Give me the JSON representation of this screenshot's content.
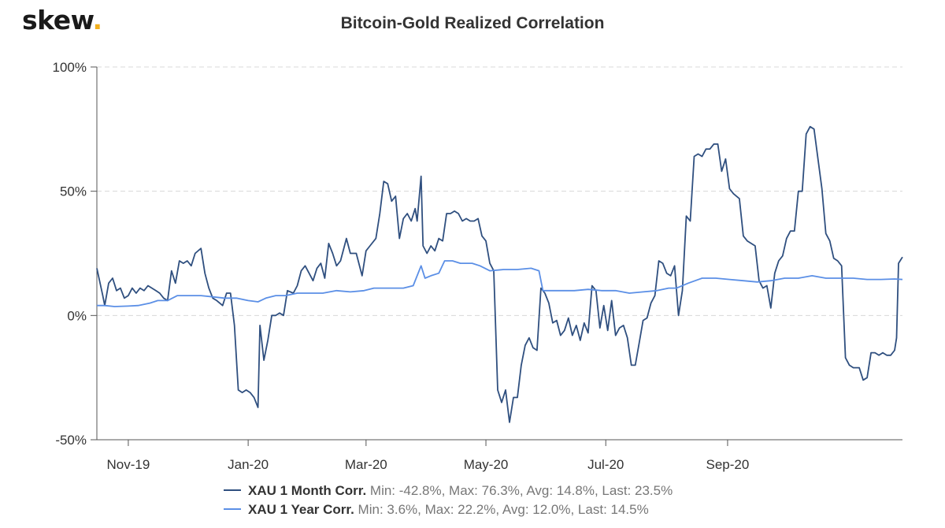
{
  "logo": {
    "text": "skew",
    "dot": "."
  },
  "chart_data": {
    "type": "line",
    "title": "Bitcoin-Gold Realized Correlation",
    "xlabel": "",
    "ylabel": "",
    "ylim": [
      -50,
      100
    ],
    "xlim": [
      "2019-10-16",
      "2020-11-26"
    ],
    "y_ticks": [
      {
        "value": 100,
        "label": "100%"
      },
      {
        "value": 50,
        "label": "50%"
      },
      {
        "value": 0,
        "label": "0%"
      },
      {
        "value": -50,
        "label": "-50%"
      }
    ],
    "x_ticks": [
      {
        "date": "2019-11-01",
        "label": "Nov-19"
      },
      {
        "date": "2020-01-01",
        "label": "Jan-20"
      },
      {
        "date": "2020-03-01",
        "label": "Mar-20"
      },
      {
        "date": "2020-05-01",
        "label": "May-20"
      },
      {
        "date": "2020-07-01",
        "label": "Jul-20"
      },
      {
        "date": "2020-09-01",
        "label": "Sep-20"
      }
    ],
    "grid": "horizontal dashed",
    "legend": "bottom-center",
    "series": [
      {
        "name": "XAU 1 Month Corr.",
        "stats": "Min: -42.8%, Max: 76.3%, Avg: 14.8%, Last: 23.5%",
        "color": "#2f4f7f",
        "points": [
          [
            "2019-10-16",
            19
          ],
          [
            "2019-10-19",
            8
          ],
          [
            "2019-10-20",
            4
          ],
          [
            "2019-10-22",
            13
          ],
          [
            "2019-10-24",
            15
          ],
          [
            "2019-10-26",
            10
          ],
          [
            "2019-10-28",
            11
          ],
          [
            "2019-10-30",
            7
          ],
          [
            "2019-11-01",
            8
          ],
          [
            "2019-11-03",
            11
          ],
          [
            "2019-11-05",
            9
          ],
          [
            "2019-11-07",
            11
          ],
          [
            "2019-11-09",
            10
          ],
          [
            "2019-11-11",
            12
          ],
          [
            "2019-11-13",
            11
          ],
          [
            "2019-11-15",
            10
          ],
          [
            "2019-11-17",
            9
          ],
          [
            "2019-11-19",
            7
          ],
          [
            "2019-11-21",
            6
          ],
          [
            "2019-11-23",
            18
          ],
          [
            "2019-11-25",
            13
          ],
          [
            "2019-11-27",
            22
          ],
          [
            "2019-11-29",
            21
          ],
          [
            "2019-12-01",
            22
          ],
          [
            "2019-12-03",
            20
          ],
          [
            "2019-12-05",
            25
          ],
          [
            "2019-12-08",
            27
          ],
          [
            "2019-12-10",
            17
          ],
          [
            "2019-12-12",
            11
          ],
          [
            "2019-12-14",
            7
          ],
          [
            "2019-12-16",
            6
          ],
          [
            "2019-12-19",
            4
          ],
          [
            "2019-12-21",
            9
          ],
          [
            "2019-12-23",
            9
          ],
          [
            "2019-12-25",
            -4
          ],
          [
            "2019-12-27",
            -30
          ],
          [
            "2019-12-29",
            -31
          ],
          [
            "2019-12-31",
            -30
          ],
          [
            "2020-01-02",
            -31
          ],
          [
            "2020-01-04",
            -33
          ],
          [
            "2020-01-06",
            -37
          ],
          [
            "2020-01-07",
            -4
          ],
          [
            "2020-01-09",
            -18
          ],
          [
            "2020-01-11",
            -10
          ],
          [
            "2020-01-13",
            0
          ],
          [
            "2020-01-15",
            0
          ],
          [
            "2020-01-17",
            1
          ],
          [
            "2020-01-19",
            0
          ],
          [
            "2020-01-21",
            10
          ],
          [
            "2020-01-24",
            9
          ],
          [
            "2020-01-26",
            12
          ],
          [
            "2020-01-28",
            18
          ],
          [
            "2020-01-30",
            20
          ],
          [
            "2020-02-01",
            17
          ],
          [
            "2020-02-03",
            14
          ],
          [
            "2020-02-05",
            19
          ],
          [
            "2020-02-07",
            21
          ],
          [
            "2020-02-09",
            15
          ],
          [
            "2020-02-11",
            29
          ],
          [
            "2020-02-13",
            25
          ],
          [
            "2020-02-15",
            20
          ],
          [
            "2020-02-17",
            22
          ],
          [
            "2020-02-20",
            31
          ],
          [
            "2020-02-22",
            25
          ],
          [
            "2020-02-25",
            25
          ],
          [
            "2020-02-28",
            16
          ],
          [
            "2020-03-01",
            26
          ],
          [
            "2020-03-03",
            28
          ],
          [
            "2020-03-06",
            31
          ],
          [
            "2020-03-08",
            41
          ],
          [
            "2020-03-10",
            54
          ],
          [
            "2020-03-12",
            53
          ],
          [
            "2020-03-14",
            46
          ],
          [
            "2020-03-16",
            48
          ],
          [
            "2020-03-18",
            31
          ],
          [
            "2020-03-20",
            39
          ],
          [
            "2020-03-22",
            41
          ],
          [
            "2020-03-24",
            38
          ],
          [
            "2020-03-26",
            43
          ],
          [
            "2020-03-27",
            38
          ],
          [
            "2020-03-29",
            56
          ],
          [
            "2020-03-30",
            28
          ],
          [
            "2020-04-01",
            25
          ],
          [
            "2020-04-03",
            28
          ],
          [
            "2020-04-05",
            26
          ],
          [
            "2020-04-07",
            31
          ],
          [
            "2020-04-09",
            30
          ],
          [
            "2020-04-11",
            41
          ],
          [
            "2020-04-13",
            41
          ],
          [
            "2020-04-15",
            42
          ],
          [
            "2020-04-17",
            41
          ],
          [
            "2020-04-19",
            38
          ],
          [
            "2020-04-21",
            39
          ],
          [
            "2020-04-23",
            38
          ],
          [
            "2020-04-25",
            38
          ],
          [
            "2020-04-27",
            39
          ],
          [
            "2020-04-29",
            32
          ],
          [
            "2020-05-01",
            30
          ],
          [
            "2020-05-03",
            21
          ],
          [
            "2020-05-05",
            18
          ],
          [
            "2020-05-07",
            -30
          ],
          [
            "2020-05-09",
            -35
          ],
          [
            "2020-05-11",
            -30
          ],
          [
            "2020-05-13",
            -43
          ],
          [
            "2020-05-15",
            -33
          ],
          [
            "2020-05-17",
            -33
          ],
          [
            "2020-05-19",
            -20
          ],
          [
            "2020-05-21",
            -12
          ],
          [
            "2020-05-23",
            -9
          ],
          [
            "2020-05-25",
            -13
          ],
          [
            "2020-05-27",
            -14
          ],
          [
            "2020-05-29",
            11
          ],
          [
            "2020-05-31",
            9
          ],
          [
            "2020-06-02",
            5
          ],
          [
            "2020-06-04",
            -3
          ],
          [
            "2020-06-06",
            -2
          ],
          [
            "2020-06-08",
            -8
          ],
          [
            "2020-06-10",
            -6
          ],
          [
            "2020-06-12",
            -1
          ],
          [
            "2020-06-14",
            -8
          ],
          [
            "2020-06-16",
            -4
          ],
          [
            "2020-06-18",
            -10
          ],
          [
            "2020-06-20",
            -3
          ],
          [
            "2020-06-22",
            -7
          ],
          [
            "2020-06-24",
            12
          ],
          [
            "2020-06-26",
            10
          ],
          [
            "2020-06-28",
            -5
          ],
          [
            "2020-06-30",
            4
          ],
          [
            "2020-07-02",
            -6
          ],
          [
            "2020-07-04",
            6
          ],
          [
            "2020-07-06",
            -8
          ],
          [
            "2020-07-08",
            -5
          ],
          [
            "2020-07-10",
            -4
          ],
          [
            "2020-07-12",
            -9
          ],
          [
            "2020-07-14",
            -20
          ],
          [
            "2020-07-16",
            -20
          ],
          [
            "2020-07-18",
            -11
          ],
          [
            "2020-07-20",
            -2
          ],
          [
            "2020-07-22",
            -1
          ],
          [
            "2020-07-24",
            5
          ],
          [
            "2020-07-26",
            8
          ],
          [
            "2020-07-28",
            22
          ],
          [
            "2020-07-30",
            21
          ],
          [
            "2020-08-01",
            17
          ],
          [
            "2020-08-03",
            16
          ],
          [
            "2020-08-05",
            20
          ],
          [
            "2020-08-07",
            0
          ],
          [
            "2020-08-09",
            10
          ],
          [
            "2020-08-11",
            40
          ],
          [
            "2020-08-13",
            38
          ],
          [
            "2020-08-15",
            64
          ],
          [
            "2020-08-17",
            65
          ],
          [
            "2020-08-19",
            64
          ],
          [
            "2020-08-21",
            67
          ],
          [
            "2020-08-23",
            67
          ],
          [
            "2020-08-25",
            69
          ],
          [
            "2020-08-27",
            69
          ],
          [
            "2020-08-29",
            58
          ],
          [
            "2020-08-31",
            63
          ],
          [
            "2020-09-02",
            51
          ],
          [
            "2020-09-04",
            49
          ],
          [
            "2020-09-07",
            47
          ],
          [
            "2020-09-09",
            32
          ],
          [
            "2020-09-11",
            30
          ],
          [
            "2020-09-13",
            29
          ],
          [
            "2020-09-15",
            28
          ],
          [
            "2020-09-17",
            14
          ],
          [
            "2020-09-19",
            11
          ],
          [
            "2020-09-21",
            12
          ],
          [
            "2020-09-23",
            3
          ],
          [
            "2020-09-25",
            17
          ],
          [
            "2020-09-27",
            22
          ],
          [
            "2020-09-29",
            24
          ],
          [
            "2020-10-01",
            31
          ],
          [
            "2020-10-03",
            34
          ],
          [
            "2020-10-05",
            34
          ],
          [
            "2020-10-07",
            50
          ],
          [
            "2020-10-09",
            50
          ],
          [
            "2020-10-11",
            73
          ],
          [
            "2020-10-13",
            76
          ],
          [
            "2020-10-15",
            75
          ],
          [
            "2020-10-17",
            63
          ],
          [
            "2020-10-19",
            51
          ],
          [
            "2020-10-21",
            33
          ],
          [
            "2020-10-23",
            30
          ],
          [
            "2020-10-25",
            23
          ],
          [
            "2020-10-27",
            22
          ],
          [
            "2020-10-29",
            20
          ],
          [
            "2020-10-31",
            -17
          ],
          [
            "2020-11-02",
            -20
          ],
          [
            "2020-11-04",
            -21
          ],
          [
            "2020-11-07",
            -21
          ],
          [
            "2020-11-09",
            -26
          ],
          [
            "2020-11-11",
            -25
          ],
          [
            "2020-11-13",
            -15
          ],
          [
            "2020-11-15",
            -15
          ],
          [
            "2020-11-17",
            -16
          ],
          [
            "2020-11-19",
            -15
          ],
          [
            "2020-11-21",
            -16
          ],
          [
            "2020-11-23",
            -16
          ],
          [
            "2020-11-25",
            -14
          ],
          [
            "2020-11-26",
            -9
          ],
          [
            "2020-11-27",
            21
          ],
          [
            "2020-11-29",
            23.5
          ]
        ]
      },
      {
        "name": "XAU 1 Year Corr.",
        "stats": "Min: 3.6%, Max: 22.2%, Avg: 12.0%, Last: 14.5%",
        "color": "#5b8fe6",
        "points": [
          [
            "2019-10-16",
            4
          ],
          [
            "2019-10-20",
            4
          ],
          [
            "2019-10-25",
            3.6
          ],
          [
            "2019-11-01",
            3.8
          ],
          [
            "2019-11-06",
            4
          ],
          [
            "2019-11-12",
            5
          ],
          [
            "2019-11-16",
            6
          ],
          [
            "2019-11-21",
            6
          ],
          [
            "2019-11-26",
            8
          ],
          [
            "2019-12-02",
            8
          ],
          [
            "2019-12-08",
            8
          ],
          [
            "2019-12-14",
            7.5
          ],
          [
            "2019-12-20",
            7
          ],
          [
            "2019-12-26",
            7
          ],
          [
            "2020-01-01",
            6
          ],
          [
            "2020-01-06",
            5.5
          ],
          [
            "2020-01-10",
            7
          ],
          [
            "2020-01-15",
            8
          ],
          [
            "2020-01-20",
            8
          ],
          [
            "2020-01-26",
            9
          ],
          [
            "2020-02-01",
            9
          ],
          [
            "2020-02-08",
            9
          ],
          [
            "2020-02-15",
            10
          ],
          [
            "2020-02-22",
            9.5
          ],
          [
            "2020-02-29",
            10
          ],
          [
            "2020-03-05",
            11
          ],
          [
            "2020-03-12",
            11
          ],
          [
            "2020-03-20",
            11
          ],
          [
            "2020-03-25",
            12
          ],
          [
            "2020-03-29",
            20
          ],
          [
            "2020-03-31",
            15
          ],
          [
            "2020-04-03",
            16
          ],
          [
            "2020-04-07",
            17
          ],
          [
            "2020-04-10",
            22
          ],
          [
            "2020-04-14",
            22
          ],
          [
            "2020-04-18",
            21
          ],
          [
            "2020-04-24",
            21
          ],
          [
            "2020-04-28",
            20
          ],
          [
            "2020-05-03",
            18
          ],
          [
            "2020-05-10",
            18.5
          ],
          [
            "2020-05-17",
            18.5
          ],
          [
            "2020-05-24",
            19
          ],
          [
            "2020-05-28",
            18
          ],
          [
            "2020-05-30",
            10
          ],
          [
            "2020-06-05",
            10
          ],
          [
            "2020-06-15",
            10
          ],
          [
            "2020-06-22",
            10.5
          ],
          [
            "2020-06-29",
            10
          ],
          [
            "2020-07-06",
            10
          ],
          [
            "2020-07-13",
            9
          ],
          [
            "2020-07-20",
            9.5
          ],
          [
            "2020-07-27",
            10
          ],
          [
            "2020-08-02",
            11
          ],
          [
            "2020-08-06",
            11
          ],
          [
            "2020-08-12",
            13
          ],
          [
            "2020-08-19",
            15
          ],
          [
            "2020-08-26",
            15
          ],
          [
            "2020-09-02",
            14.5
          ],
          [
            "2020-09-09",
            14
          ],
          [
            "2020-09-16",
            13.5
          ],
          [
            "2020-09-23",
            14
          ],
          [
            "2020-09-30",
            15
          ],
          [
            "2020-10-07",
            15
          ],
          [
            "2020-10-14",
            16
          ],
          [
            "2020-10-21",
            15
          ],
          [
            "2020-10-28",
            15
          ],
          [
            "2020-11-04",
            15
          ],
          [
            "2020-11-11",
            14.5
          ],
          [
            "2020-11-18",
            14.5
          ],
          [
            "2020-11-25",
            14.7
          ],
          [
            "2020-11-29",
            14.5
          ]
        ]
      }
    ]
  }
}
